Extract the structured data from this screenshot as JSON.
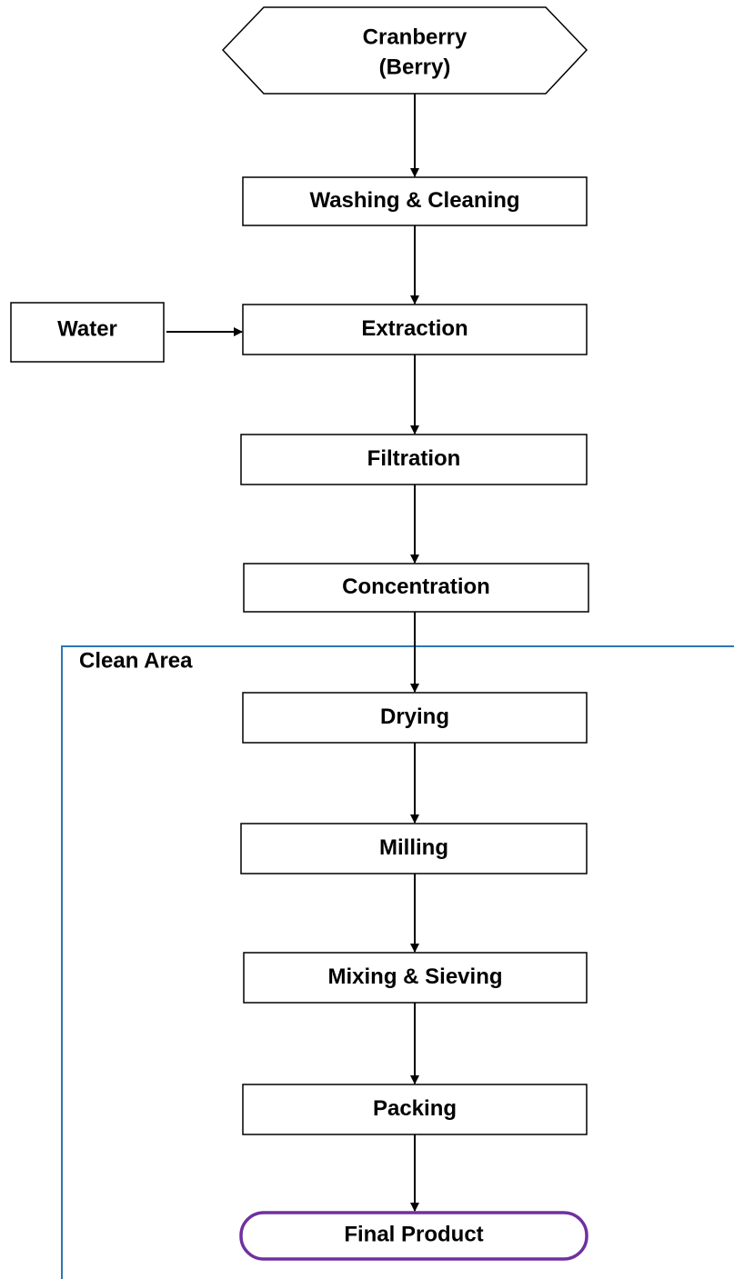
{
  "start": {
    "lines": [
      "Cranberry",
      "(Berry)"
    ]
  },
  "steps": [
    "Washing & Cleaning",
    "Extraction",
    "Filtration",
    "Concentration",
    "Drying",
    "Milling",
    "Mixing & Sieving",
    "Packing"
  ],
  "input": "Water",
  "area": "Clean Area",
  "end": "Final Product"
}
